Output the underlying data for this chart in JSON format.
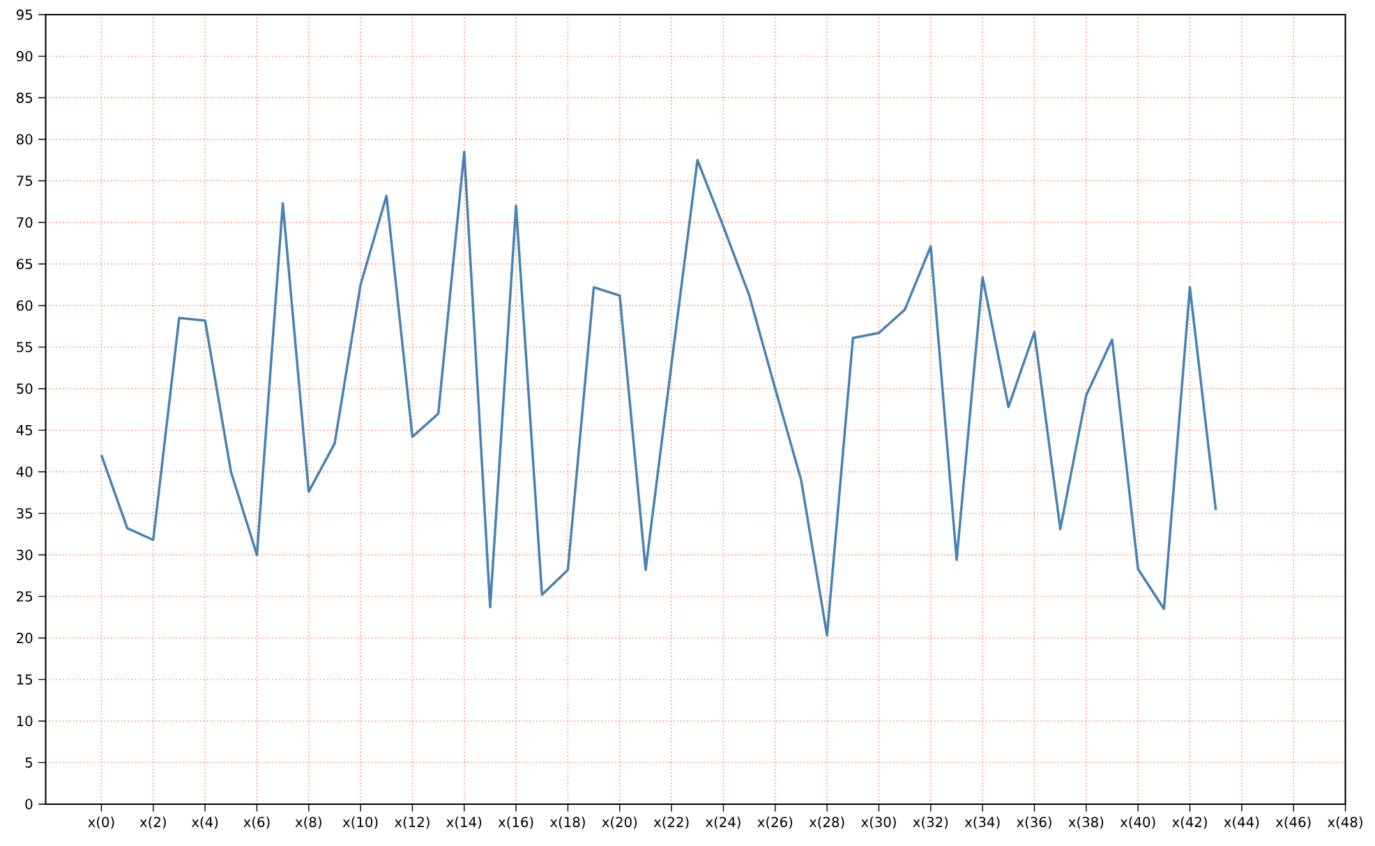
{
  "chart_data": {
    "type": "line",
    "categories": [
      "x(0)",
      null,
      "x(2)",
      null,
      "x(4)",
      null,
      "x(6)",
      null,
      "x(8)",
      null,
      "x(10)",
      null,
      "x(12)",
      null,
      "x(14)",
      null,
      "x(16)",
      null,
      "x(18)",
      null,
      "x(20)",
      null,
      "x(22)",
      null,
      "x(24)",
      null,
      "x(26)",
      null,
      "x(28)",
      null,
      "x(30)",
      null,
      "x(32)",
      null,
      "x(34)",
      null,
      "x(36)",
      null,
      "x(38)",
      null,
      "x(40)",
      null,
      "x(42)",
      null,
      "x(44)",
      null,
      "x(46)",
      null,
      "x(48)"
    ],
    "series": [
      {
        "color": "#4682b4",
        "values": [
          42,
          33.2,
          31.8,
          58.5,
          58.2,
          40,
          30,
          72.3,
          37.6,
          43.4,
          62.5,
          73.2,
          44.2,
          47,
          78.5,
          23.7,
          72,
          25.2,
          28.2,
          62.2,
          61.2,
          28.2,
          53,
          77.5,
          69.5,
          61.2,
          50,
          39,
          20.3,
          56.1,
          56.7,
          59.5,
          67.1,
          29.4,
          63.4,
          47.8,
          56.8,
          33.1,
          49.2,
          55.9,
          28.3,
          23.5,
          62.2,
          35.4,
          null,
          null,
          null,
          null,
          null
        ]
      }
    ],
    "ylim": [
      0,
      95
    ],
    "yticks": [
      0,
      5,
      10,
      15,
      20,
      25,
      30,
      35,
      40,
      45,
      50,
      55,
      60,
      65,
      70,
      75,
      80,
      85,
      90,
      95
    ],
    "grid": true,
    "marker": "none",
    "line_style": "solid"
  }
}
